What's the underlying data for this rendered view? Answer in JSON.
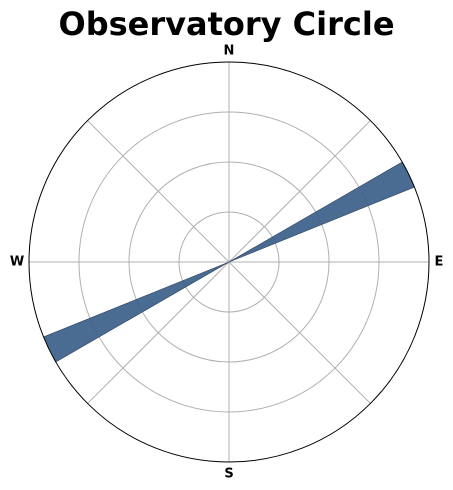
{
  "chart_data": {
    "type": "polar-bar",
    "title": "Observatory Circle",
    "direction_labels": [
      "N",
      "E",
      "S",
      "W"
    ],
    "radial_ticks": [
      1,
      2,
      3,
      4
    ],
    "rlim": [
      0,
      4
    ],
    "angle_grid_step_deg": 45,
    "grid": true,
    "show_radial_tick_labels": false,
    "wedges": [
      {
        "center_bearing_deg": 64,
        "width_deg": 8,
        "value": 4
      },
      {
        "center_bearing_deg": 244,
        "width_deg": 8,
        "value": 4
      }
    ],
    "bar_color": "#3b5f8a",
    "bar_alpha": 0.92,
    "grid_color": "#b0b0b0"
  }
}
